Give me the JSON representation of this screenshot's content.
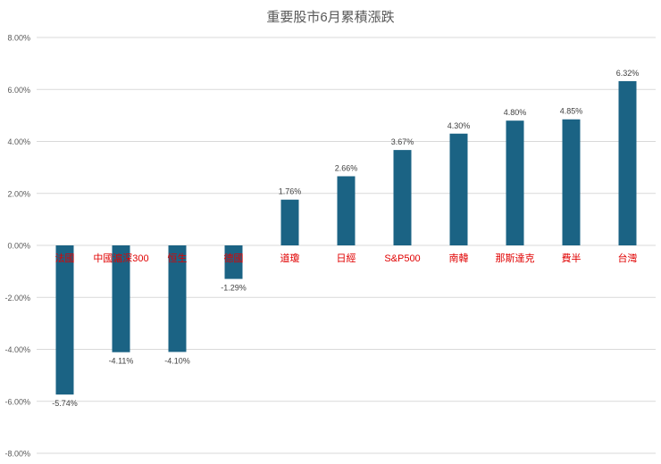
{
  "chart_data": {
    "type": "bar",
    "title": "重要股市6月累積漲跌",
    "categories": [
      "法國",
      "中國滬深300",
      "恒生",
      "德國",
      "道瓊",
      "日經",
      "S&P500",
      "南韓",
      "那斯達克",
      "費半",
      "台灣"
    ],
    "values": [
      -5.74,
      -4.11,
      -4.1,
      -1.29,
      1.76,
      2.66,
      3.67,
      4.3,
      4.8,
      4.85,
      6.32
    ],
    "data_labels": [
      "-5.74%",
      "-4.11%",
      "-4.10%",
      "-1.29%",
      "1.76%",
      "2.66%",
      "3.67%",
      "4.30%",
      "4.80%",
      "4.85%",
      "6.32%"
    ],
    "y_ticks": [
      "8.00%",
      "6.00%",
      "4.00%",
      "2.00%",
      "0.00%",
      "-2.00%",
      "-4.00%",
      "-6.00%",
      "-8.00%"
    ],
    "ylim": [
      -8,
      8
    ],
    "grid": true,
    "colors": {
      "bar": "#1b6384",
      "category_label": "#e00000"
    }
  }
}
